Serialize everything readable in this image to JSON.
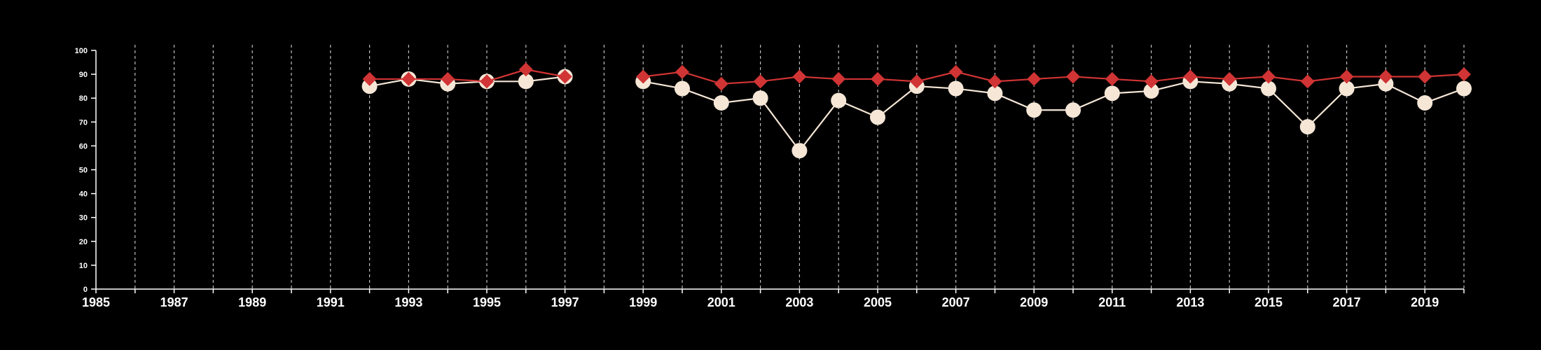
{
  "chart_data": {
    "type": "line",
    "title": "",
    "xlabel": "",
    "ylabel": "",
    "xlim": [
      1985,
      2020
    ],
    "ylim": [
      0,
      100
    ],
    "x_ticks": [
      1985,
      1987,
      1989,
      1991,
      1993,
      1995,
      1997,
      1999,
      2001,
      2003,
      2005,
      2007,
      2009,
      2011,
      2013,
      2015,
      2017,
      2019
    ],
    "y_ticks": [
      0,
      10,
      20,
      30,
      40,
      50,
      60,
      70,
      80,
      90,
      100
    ],
    "grid": "vertical dashed lines at every year",
    "legend": "none",
    "colors": {
      "background": "#000000",
      "axis": "#ffffff",
      "grid": "#bfbfbf",
      "series_a": "#f5e6d6",
      "series_b": "#d03434"
    },
    "series": [
      {
        "marker": "circle",
        "color": "#f5e6d6",
        "segments": [
          {
            "x": [
              1992,
              1993,
              1994,
              1995,
              1996,
              1997
            ],
            "y": [
              85,
              88,
              86,
              87,
              87,
              89
            ]
          },
          {
            "x": [
              1999,
              2000,
              2001,
              2002,
              2003,
              2004,
              2005,
              2006,
              2007,
              2008,
              2009,
              2010,
              2011,
              2012,
              2013,
              2014,
              2015,
              2016,
              2017,
              2018,
              2019,
              2020
            ],
            "y": [
              87,
              84,
              78,
              80,
              58,
              79,
              72,
              85,
              84,
              82,
              75,
              75,
              82,
              83,
              87,
              86,
              84,
              68,
              84,
              86,
              78,
              84
            ]
          }
        ]
      },
      {
        "marker": "diamond",
        "color": "#d03434",
        "segments": [
          {
            "x": [
              1992,
              1993,
              1994,
              1995,
              1996,
              1997
            ],
            "y": [
              88,
              88,
              88,
              87,
              92,
              89
            ]
          },
          {
            "x": [
              1999,
              2000,
              2001,
              2002,
              2003,
              2004,
              2005,
              2006,
              2007,
              2008,
              2009,
              2010,
              2011,
              2012,
              2013,
              2014,
              2015,
              2016,
              2017,
              2018,
              2019,
              2020
            ],
            "y": [
              89,
              91,
              86,
              87,
              89,
              88,
              88,
              87,
              91,
              87,
              88,
              89,
              88,
              87,
              89,
              88,
              89,
              87,
              89,
              89,
              89,
              90
            ]
          }
        ]
      }
    ]
  }
}
